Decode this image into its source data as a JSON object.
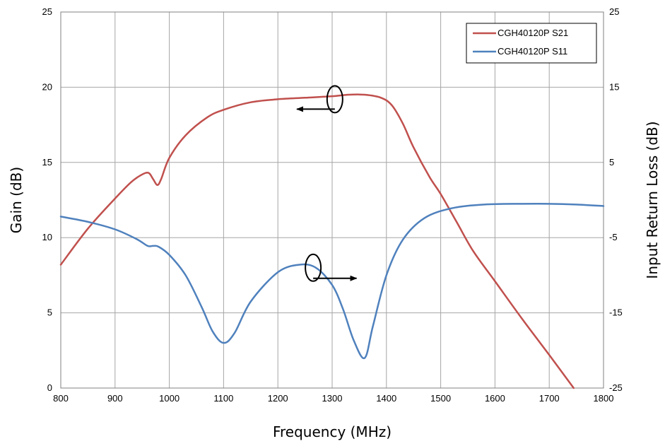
{
  "chart_data": {
    "type": "line",
    "title": "",
    "xlabel": "Frequency (MHz)",
    "ylabel": "Gain (dB)",
    "y2label": "Input Return Loss (dB)",
    "xlim": [
      800,
      1800
    ],
    "ylim": [
      0,
      25
    ],
    "y2lim": [
      -25,
      25
    ],
    "x_ticks": [
      "800",
      "900",
      "1000",
      "1100",
      "1200",
      "1300",
      "1400",
      "1500",
      "1600",
      "1700",
      "1800"
    ],
    "y_ticks": [
      "0",
      "5",
      "10",
      "15",
      "20",
      "25"
    ],
    "y2_ticks": [
      "-25",
      "-15",
      "-5",
      "5",
      "15",
      "25"
    ],
    "grid": true,
    "legend_position": "top-right",
    "series": [
      {
        "name": "CGH40120P S21",
        "axis": "left",
        "color": "#c0504d",
        "x": [
          800,
          850,
          900,
          930,
          950,
          962,
          970,
          978,
          985,
          1000,
          1030,
          1070,
          1100,
          1150,
          1200,
          1250,
          1300,
          1330,
          1360,
          1390,
          1410,
          1430,
          1450,
          1480,
          1500,
          1530,
          1560,
          1600,
          1650,
          1700,
          1745
        ],
        "values": [
          8.2,
          10.6,
          12.6,
          13.7,
          14.2,
          14.3,
          13.9,
          13.5,
          13.9,
          15.3,
          16.8,
          18.0,
          18.5,
          19.0,
          19.2,
          19.3,
          19.4,
          19.5,
          19.5,
          19.3,
          18.8,
          17.6,
          16.0,
          14.0,
          12.9,
          11.0,
          9.1,
          7.1,
          4.6,
          2.2,
          0.0
        ]
      },
      {
        "name": "CGH40120P S11",
        "axis": "right",
        "color": "#4f81bd",
        "x": [
          800,
          850,
          900,
          940,
          960,
          970,
          980,
          1000,
          1030,
          1060,
          1080,
          1100,
          1120,
          1150,
          1200,
          1240,
          1270,
          1300,
          1320,
          1340,
          1360,
          1375,
          1400,
          1430,
          1470,
          1520,
          1580,
          1650,
          1700,
          1750,
          1800
        ],
        "values": [
          -2.2,
          -2.9,
          -3.9,
          -5.2,
          -6.1,
          -6.1,
          -6.2,
          -7.3,
          -10.0,
          -14.3,
          -17.5,
          -19.0,
          -17.7,
          -13.5,
          -9.6,
          -8.6,
          -9.0,
          -11.3,
          -14.5,
          -18.7,
          -21.0,
          -16.8,
          -10.0,
          -5.3,
          -2.4,
          -1.1,
          -0.6,
          -0.5,
          -0.5,
          -0.6,
          -0.8
        ]
      }
    ],
    "annotations": [
      {
        "shape": "ellipse-with-arrow",
        "x": 1305,
        "y": 19.2,
        "axis": "left",
        "arrow": "left",
        "arrow_to_x": 1235
      },
      {
        "shape": "ellipse-with-arrow",
        "x": 1265,
        "y": -9.0,
        "axis": "right",
        "arrow": "right",
        "arrow_to_x": 1345
      }
    ]
  }
}
